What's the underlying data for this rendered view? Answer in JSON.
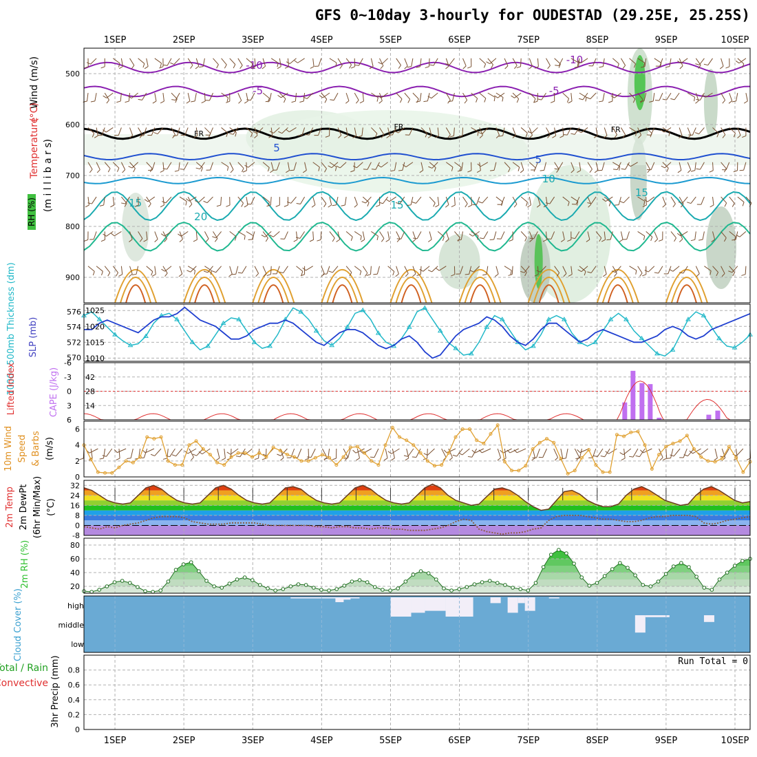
{
  "title": "GFS 0~10day 3-hourly for OUDESTAD (29.25E, 25.25S)",
  "chart_data": [
    {
      "type": "line",
      "name": "upper-air cross-section",
      "x_labels": [
        "1SEP",
        "2SEP",
        "3SEP",
        "4SEP",
        "5SEP",
        "6SEP",
        "7SEP",
        "8SEP",
        "9SEP",
        "10SEP"
      ],
      "ylabel_parts": [
        {
          "text": "Wind (m/s)",
          "color": "#000000"
        },
        {
          "text": "Temperature (°C)",
          "color": "#e03030"
        },
        {
          "text": "RH (%)",
          "color": "#000000"
        },
        {
          "text": "(millibars)",
          "color": "#000000"
        }
      ],
      "ylabel_wind": "Wind (m/s)",
      "ylabel_temp": "Temperature",
      "ylabel_tempunit": "(°C)",
      "ylabel_rh": "RH (%)",
      "ylabel_mb": "(m i l l i b a r s)",
      "y_ticks": [
        500,
        600,
        700,
        800,
        900
      ],
      "ylim": [
        450,
        950
      ],
      "contour_labels": [
        "-10",
        "-10",
        "-5",
        "-5",
        "FR",
        "FR",
        "FR",
        "5",
        "5",
        "10",
        "15",
        "15",
        "15",
        "20",
        "10",
        "10"
      ],
      "isotherms": [
        {
          "label": "-10",
          "color": "#8a1fb0",
          "mb": 488
        },
        {
          "label": "-5",
          "color": "#8a1fb0",
          "mb": 535
        },
        {
          "label": "FR",
          "color": "#000000",
          "mb": 618
        },
        {
          "label": "5",
          "color": "#1f4fd0",
          "mb": 663
        },
        {
          "label": "10",
          "color": "#1a9ad0",
          "mb": 710
        },
        {
          "label": "15",
          "color": "#1aaab0",
          "mb": 760
        },
        {
          "label": "20",
          "color": "#20b890",
          "mb": 820
        }
      ]
    },
    {
      "type": "line",
      "name": "thickness and SLP",
      "ylabel_left": "1000~500mb Thickness (dm)",
      "ylabel_right": "SLP (mb)",
      "thickness_ticks": [
        570,
        572,
        574,
        576
      ],
      "slp_ticks": [
        1010,
        1015,
        1020,
        1025
      ],
      "thickness_dm": [
        575.5,
        576,
        575,
        574,
        573,
        572.2,
        571.6,
        571.8,
        572.8,
        574.5,
        575.5,
        575.8,
        575,
        573.5,
        572,
        571,
        571.5,
        573,
        574.5,
        575.2,
        575,
        573.5,
        572,
        571.2,
        571.5,
        573,
        575,
        576.5,
        576,
        575,
        573.5,
        572.2,
        571.6,
        572.5,
        574,
        575.8,
        576.2,
        575,
        573.2,
        572,
        571.5,
        572.5,
        574,
        576,
        576.5,
        575,
        573.5,
        572,
        571.2,
        570.3,
        570.5,
        572,
        574,
        575.5,
        575,
        573.5,
        572,
        571,
        571.5,
        573,
        575,
        575.5,
        575,
        573.2,
        572,
        571.5,
        572,
        573.5,
        575,
        575.8,
        575,
        573.5,
        572.5,
        571.5,
        570.5,
        570.2,
        571,
        573,
        575,
        576,
        575.5,
        574,
        572.5,
        571.5,
        571.3,
        572,
        573
      ],
      "slp_mb": [
        1019,
        1019,
        1021,
        1022,
        1021,
        1020,
        1019,
        1018,
        1020,
        1022,
        1023,
        1023,
        1024,
        1026,
        1024,
        1022,
        1021,
        1020,
        1018,
        1016,
        1016,
        1017,
        1019,
        1020,
        1021,
        1021,
        1022,
        1021,
        1019,
        1017,
        1015,
        1014,
        1016,
        1018,
        1019,
        1019,
        1018,
        1016,
        1014,
        1013,
        1014,
        1016,
        1017,
        1015,
        1012,
        1010,
        1011,
        1014,
        1017,
        1019,
        1020,
        1021,
        1023,
        1022,
        1020,
        1017,
        1015,
        1014,
        1016,
        1019,
        1021,
        1021,
        1019,
        1017,
        1015,
        1016,
        1018,
        1019,
        1018,
        1017,
        1016,
        1015,
        1015,
        1016,
        1017,
        1019,
        1020,
        1019,
        1017,
        1016,
        1017,
        1019,
        1020,
        1021,
        1022,
        1023,
        1024
      ],
      "x_labels": [
        "1SEP",
        "2SEP",
        "3SEP",
        "4SEP",
        "5SEP",
        "6SEP",
        "7SEP",
        "8SEP",
        "9SEP",
        "10SEP"
      ]
    },
    {
      "type": "bar",
      "name": "CAPE and Lifted Index",
      "ylabel_cape": "CAPE (J/kg)",
      "ylabel_li": "Lifted Index",
      "cape_ticks": [
        14,
        28,
        42
      ],
      "li_ticks": [
        "6",
        "3",
        "0",
        "-3",
        "-6"
      ],
      "cape_bars": [
        {
          "day": 8.4,
          "value": 17
        },
        {
          "day": 8.52,
          "value": 48
        },
        {
          "day": 8.65,
          "value": 36
        },
        {
          "day": 8.77,
          "value": 35
        },
        {
          "day": 8.9,
          "value": 2
        },
        {
          "day": 9.62,
          "value": 5
        },
        {
          "day": 9.75,
          "value": 9
        }
      ],
      "x_labels": [
        "1SEP",
        "2SEP",
        "3SEP",
        "4SEP",
        "5SEP",
        "6SEP",
        "7SEP",
        "8SEP",
        "9SEP",
        "10SEP"
      ]
    },
    {
      "type": "line",
      "name": "10m wind speed",
      "ylabel": "10m Wind Speed & Barbs (m/s)",
      "ylabel_parts": [
        "10m Wind",
        "Speed",
        "& Barbs",
        "(m/s)"
      ],
      "y_ticks": [
        0,
        2,
        4,
        6
      ],
      "ylim": [
        0,
        7
      ],
      "wind_speed_ms": [
        4,
        2.2,
        0.6,
        0.5,
        0.5,
        1.2,
        2,
        1.8,
        2.5,
        5,
        4.8,
        5,
        2,
        1.5,
        1.5,
        4,
        4.5,
        3.5,
        2.8,
        1.8,
        1.5,
        2.5,
        3,
        3,
        2.5,
        3,
        2.5,
        3.7,
        3.3,
        2.8,
        2.5,
        2,
        2,
        2.4,
        2.8,
        2.4,
        1.5,
        2.5,
        3.7,
        3.8,
        3,
        2,
        1.5,
        4,
        6.2,
        5,
        4.6,
        4,
        3,
        2,
        1.4,
        1.5,
        3,
        5,
        6,
        6,
        4.6,
        4.2,
        5.4,
        6.5,
        1.9,
        0.8,
        0.8,
        1.4,
        3.5,
        4.3,
        4.8,
        4.3,
        2.3,
        0.4,
        0.8,
        2.4,
        3.4,
        1.5,
        0.6,
        0.6,
        5.3,
        5.1,
        5.6,
        5.7,
        4,
        1,
        2.8,
        3.8,
        4.2,
        4.5,
        5.2,
        3.5,
        2.5,
        2,
        1.9,
        2.3,
        3.8,
        2.4,
        0.6,
        1.9
      ],
      "x_labels": [
        "1SEP",
        "2SEP",
        "3SEP",
        "4SEP",
        "5SEP",
        "6SEP",
        "7SEP",
        "8SEP",
        "9SEP",
        "10SEP"
      ]
    },
    {
      "type": "area",
      "name": "2m temperature and dewpoint",
      "ylabel": "2m Temp 2m DewPt (6hr Min/Max) (°C)",
      "ylabel_parts": [
        "2m Temp",
        "2m DewPt",
        "(6hr Min/Max)",
        "(°C)"
      ],
      "y_ticks": [
        -8,
        0,
        8,
        16,
        24,
        32
      ],
      "ylim": [
        -8,
        36
      ],
      "temp_c": [
        30,
        28,
        24,
        20,
        18,
        17,
        18,
        24,
        30,
        32,
        29,
        24,
        20,
        18,
        17,
        18,
        24,
        30,
        32,
        29,
        24,
        20,
        18,
        17,
        18,
        24,
        30,
        31,
        29,
        24,
        20,
        18,
        17,
        18,
        24,
        30,
        32,
        29,
        24,
        20,
        18,
        17,
        18,
        24,
        30,
        33,
        30,
        24,
        20,
        18,
        16,
        17,
        23,
        29,
        30,
        28,
        24,
        19,
        15,
        12,
        13,
        20,
        27,
        28,
        25,
        20,
        17,
        15,
        15,
        17,
        24,
        29,
        31,
        28,
        24,
        20,
        18,
        16,
        17,
        24,
        29,
        31,
        28,
        24,
        20,
        18,
        19
      ],
      "dewpoint_c": [
        -1,
        -2,
        -3,
        -1,
        -2,
        0,
        1,
        2,
        4,
        6,
        7,
        7,
        7,
        6,
        3,
        2,
        1,
        1,
        1,
        2,
        2,
        2,
        2,
        1,
        0,
        0,
        0,
        0,
        0,
        0,
        -1,
        -1,
        -2,
        -1,
        -1,
        -2,
        -2,
        -3,
        -2,
        -2,
        -3,
        -3,
        -4,
        -4,
        -4,
        -3,
        -2,
        0,
        3,
        5,
        4,
        -3,
        -5,
        -6,
        -7,
        -6,
        -6,
        -5,
        -3,
        -2,
        4,
        7,
        8,
        8,
        8,
        7,
        6,
        5,
        5,
        4,
        3,
        3,
        4,
        6,
        7,
        7,
        8,
        8,
        8,
        7,
        2,
        1,
        2,
        4,
        5,
        6,
        7
      ],
      "x_labels": [
        "1SEP",
        "2SEP",
        "3SEP",
        "4SEP",
        "5SEP",
        "6SEP",
        "7SEP",
        "8SEP",
        "9SEP",
        "10SEP"
      ]
    },
    {
      "type": "area",
      "name": "2m relative humidity",
      "ylabel": "2m RH (%)",
      "y_ticks": [
        20,
        40,
        60,
        80
      ],
      "ylim": [
        0,
        80
      ],
      "rh_pct": [
        13,
        12,
        15,
        20,
        26,
        28,
        25,
        19,
        13,
        12,
        14,
        27,
        44,
        52,
        55,
        42,
        28,
        20,
        18,
        24,
        30,
        33,
        29,
        22,
        17,
        14,
        16,
        20,
        23,
        22,
        18,
        15,
        14,
        16,
        21,
        27,
        29,
        26,
        19,
        15,
        14,
        17,
        27,
        37,
        42,
        39,
        30,
        17,
        14,
        16,
        19,
        23,
        26,
        28,
        25,
        22,
        18,
        16,
        14,
        25,
        48,
        66,
        73,
        68,
        53,
        33,
        21,
        25,
        35,
        45,
        54,
        47,
        36,
        22,
        20,
        27,
        38,
        49,
        54,
        48,
        34,
        18,
        15,
        30,
        40,
        50,
        57,
        60
      ],
      "x_labels": [
        "1SEP",
        "2SEP",
        "3SEP",
        "4SEP",
        "5SEP",
        "6SEP",
        "7SEP",
        "8SEP",
        "9SEP",
        "10SEP"
      ]
    },
    {
      "type": "bar",
      "name": "cloud cover",
      "ylabel": "Cloud Cover (%)",
      "levels": [
        "high",
        "middle",
        "low"
      ],
      "high_cloud_pct": [
        0,
        0,
        0,
        0,
        0,
        0,
        0,
        0,
        0,
        0,
        0,
        0,
        0,
        0,
        0,
        0,
        0,
        0,
        0,
        0,
        0,
        0,
        0,
        0,
        0,
        0,
        0,
        0,
        0,
        0,
        0,
        0,
        0,
        0,
        0,
        0,
        0,
        0,
        5,
        5,
        5,
        5,
        5,
        10,
        15,
        20,
        30,
        35,
        35,
        40,
        30,
        30,
        20,
        10,
        5,
        0,
        0,
        0,
        0,
        0,
        0,
        0,
        0,
        0,
        0,
        0,
        0,
        0,
        0,
        0,
        0,
        0,
        0,
        0,
        0,
        0,
        0,
        0,
        0,
        0,
        0,
        0,
        0,
        0,
        0,
        0,
        0,
        0
      ],
      "high_cloud_segments": [
        {
          "start": 3.55,
          "end": 4.55,
          "value": 3
        },
        {
          "start": 4.2,
          "end": 4.32,
          "value": 25
        },
        {
          "start": 4.3,
          "end": 4.42,
          "value": 12
        },
        {
          "start": 5.0,
          "end": 5.3,
          "value": 100
        },
        {
          "start": 5.3,
          "end": 5.5,
          "value": 80
        },
        {
          "start": 5.5,
          "end": 5.8,
          "value": 70
        },
        {
          "start": 5.8,
          "end": 6.2,
          "value": 100
        },
        {
          "start": 6.45,
          "end": 6.6,
          "value": 30
        },
        {
          "start": 6.7,
          "end": 6.85,
          "value": 80
        },
        {
          "start": 6.85,
          "end": 6.95,
          "value": 30
        },
        {
          "start": 6.95,
          "end": 7.1,
          "value": 70
        },
        {
          "start": 7.3,
          "end": 7.45,
          "value": 4
        }
      ],
      "mid_cloud_segments": [
        {
          "start": 8.55,
          "end": 8.7,
          "value": 90
        },
        {
          "start": 8.7,
          "end": 9.05,
          "value": 10
        },
        {
          "start": 9.55,
          "end": 9.7,
          "value": 35
        }
      ],
      "x_labels": [
        "1SEP",
        "2SEP",
        "3SEP",
        "4SEP",
        "5SEP",
        "6SEP",
        "7SEP",
        "8SEP",
        "9SEP",
        "10SEP"
      ]
    },
    {
      "type": "bar",
      "name": "3hr precipitation",
      "ylabel": "3hr Precip (mm)",
      "legend_total": "Total / Rain",
      "legend_conv": "Convective",
      "y_ticks": [
        "0",
        "0.2",
        "0.4",
        "0.6",
        "0.8"
      ],
      "ylim": [
        0,
        1
      ],
      "run_total": "Run Total = 0",
      "precip_mm": [],
      "x_labels": [
        "1SEP",
        "2SEP",
        "3SEP",
        "4SEP",
        "5SEP",
        "6SEP",
        "7SEP",
        "8SEP",
        "9SEP",
        "10SEP"
      ]
    }
  ],
  "colors": {
    "grid": "#b0b0b0",
    "slp": "#1f3fd0",
    "thickness": "#20b8c8",
    "cape": "#c070f0",
    "lifted_index": "#e03030",
    "wind_line": "#e0a030",
    "barb": "#7a5030",
    "temp_line": "#6a3a20",
    "dewpoint": "#8a5a3a",
    "rh": "#30c030",
    "cloud_bg": "#6aaad4",
    "cloud_fill": "#f2eef8",
    "precip_total": "#20a020",
    "precip_conv": "#e03030",
    "cape_label": "#c070f0",
    "rh_label": "#30c030",
    "cloud_label": "#3aa0d0",
    "thick_label": "#20b8c8",
    "slp_label": "#4040c0",
    "wind_label": "#e09020"
  }
}
